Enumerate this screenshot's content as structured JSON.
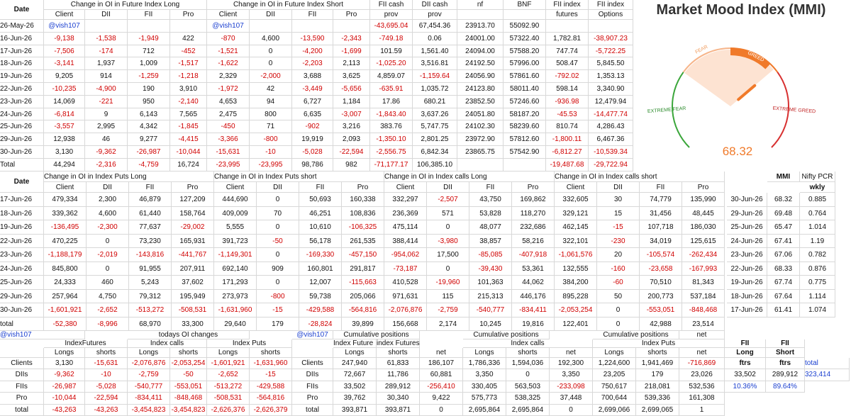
{
  "top": {
    "header": [
      "Date",
      "Change in OI in Future Index Long",
      "Change in OI in Future Index Short",
      "FII cash",
      "DII cash",
      "nf",
      "BNF",
      "FII index",
      "FII index"
    ],
    "subheader": [
      "Client",
      "DII",
      "FII",
      "Pro",
      "Client",
      "DII",
      "FII",
      "Pro",
      "prov",
      "prov",
      null,
      null,
      "futures",
      "Options"
    ],
    "rows": [
      [
        "26-May-26",
        "@vish107",
        null,
        null,
        null,
        "@vish107",
        null,
        null,
        null,
        "-43,695.04",
        "67,454.36",
        "23913.70",
        "55092.90",
        null,
        null
      ],
      [
        "16-Jun-26",
        "-9,138",
        "-1,538",
        "-1,949",
        "422",
        "-870",
        "4,600",
        "-13,590",
        "-2,343",
        "-749.18",
        "0.06",
        "24001.00",
        "57322.40",
        "1,782.81",
        "-38,907.23"
      ],
      [
        "17-Jun-26",
        "-7,506",
        "-174",
        "712",
        "-452",
        "-1,521",
        "0",
        "-4,200",
        "-1,699",
        "101.59",
        "1,561.40",
        "24094.00",
        "57588.20",
        "747.74",
        "-5,722.25"
      ],
      [
        "18-Jun-26",
        "-3,141",
        "1,937",
        "1,009",
        "-1,517",
        "-1,622",
        "0",
        "-2,203",
        "2,113",
        "-1,025.20",
        "3,516.81",
        "24192.50",
        "57996.00",
        "508.47",
        "5,845.50"
      ],
      [
        "19-Jun-26",
        "9,205",
        "914",
        "-1,259",
        "-1,218",
        "2,329",
        "-2,000",
        "3,688",
        "3,625",
        "4,859.07",
        "-1,159.64",
        "24056.90",
        "57861.60",
        "-792.02",
        "1,353.13"
      ],
      [
        "22-Jun-26",
        "-10,235",
        "-4,900",
        "190",
        "3,910",
        "-1,972",
        "42",
        "-3,449",
        "-5,656",
        "-635.91",
        "1,035.72",
        "24123.80",
        "58011.40",
        "598.14",
        "3,340.90"
      ],
      [
        "23-Jun-26",
        "14,069",
        "-221",
        "950",
        "-2,140",
        "4,653",
        "94",
        "6,727",
        "1,184",
        "17.86",
        "680.21",
        "23852.50",
        "57246.60",
        "-936.98",
        "12,479.94"
      ],
      [
        "24-Jun-26",
        "-6,814",
        "9",
        "6,143",
        "7,565",
        "2,475",
        "800",
        "6,635",
        "-3,007",
        "-1,843.40",
        "3,637.26",
        "24051.80",
        "58187.20",
        "-45.53",
        "-14,477.74"
      ],
      [
        "25-Jun-26",
        "-3,557",
        "2,995",
        "4,342",
        "-1,845",
        "-450",
        "71",
        "-902",
        "3,216",
        "383.76",
        "5,747.75",
        "24102.30",
        "58239.60",
        "810.74",
        "4,286.43"
      ],
      [
        "29-Jun-26",
        "12,938",
        "46",
        "9,277",
        "-4,415",
        "-3,366",
        "-800",
        "19,919",
        "2,093",
        "-1,350.10",
        "2,801.25",
        "23972.90",
        "57812.60",
        "-1,800.11",
        "6,467.36"
      ],
      [
        "30-Jun-26",
        "3,130",
        "-9,362",
        "-26,987",
        "-10,044",
        "-15,631",
        "-10",
        "-5,028",
        "-22,594",
        "-2,556.75",
        "6,842.34",
        "23865.75",
        "57542.90",
        "-6,812.27",
        "-10,539.34"
      ],
      [
        "Total",
        "44,294",
        "-2,316",
        "-4,759",
        "16,724",
        "-23,995",
        "-23,995",
        "98,786",
        "982",
        "-71,177.17",
        "106,385.10",
        null,
        null,
        "-19,487.68",
        "-29,722.94"
      ]
    ]
  },
  "mmi": {
    "title": "Market Mood Index (MMI)",
    "extreme_fear": "EXTREME FEAR",
    "fear": "FEAR",
    "greed": "GREED",
    "extreme_greed": "EXTREME GREED",
    "value": 68.32,
    "range": [
      0,
      100
    ]
  },
  "middle": {
    "header": [
      "Date",
      "Change in OI in Index Puts Long",
      "Change in OI in Index Puts short",
      "Change in OI in Index calls Long",
      "Change in OI in Index calls short"
    ],
    "subheader": [
      "Client",
      "DII",
      "FII",
      "Pro",
      "Client",
      "DII",
      "FII",
      "Pro",
      "Client",
      "DII",
      "FII",
      "Pro",
      "Client",
      "DII",
      "FII",
      "Pro"
    ],
    "rows": [
      [
        "17-Jun-26",
        "479,334",
        "2,300",
        "46,879",
        "127,209",
        "444,690",
        "0",
        "50,693",
        "160,338",
        "332,297",
        "-2,507",
        "43,750",
        "169,862",
        "332,605",
        "30",
        "74,779",
        "135,990"
      ],
      [
        "18-Jun-26",
        "339,362",
        "4,600",
        "61,440",
        "158,764",
        "409,009",
        "70",
        "46,251",
        "108,836",
        "236,369",
        "571",
        "53,828",
        "118,270",
        "329,121",
        "15",
        "31,456",
        "48,445"
      ],
      [
        "19-Jun-26",
        "-136,495",
        "-2,300",
        "77,637",
        "-29,002",
        "5,555",
        "0",
        "10,610",
        "-106,325",
        "475,114",
        "0",
        "48,077",
        "232,686",
        "462,145",
        "-15",
        "107,718",
        "186,030"
      ],
      [
        "22-Jun-26",
        "470,225",
        "0",
        "73,230",
        "165,931",
        "391,723",
        "-50",
        "56,178",
        "261,535",
        "388,414",
        "-3,980",
        "38,857",
        "58,216",
        "322,101",
        "-230",
        "34,019",
        "125,615"
      ],
      [
        "23-Jun-26",
        "-1,188,179",
        "-2,019",
        "-143,816",
        "-441,767",
        "-1,149,301",
        "0",
        "-169,330",
        "-457,150",
        "-954,062",
        "17,500",
        "-85,085",
        "-407,918",
        "-1,061,576",
        "20",
        "-105,574",
        "-262,434"
      ],
      [
        "24-Jun-26",
        "845,800",
        "0",
        "91,955",
        "207,911",
        "692,140",
        "909",
        "160,801",
        "291,817",
        "-73,187",
        "0",
        "-39,430",
        "53,361",
        "132,555",
        "-160",
        "-23,658",
        "-167,993"
      ],
      [
        "25-Jun-26",
        "24,333",
        "460",
        "5,243",
        "37,602",
        "171,293",
        "0",
        "12,007",
        "-115,663",
        "410,528",
        "-19,960",
        "101,363",
        "44,062",
        "384,200",
        "-60",
        "70,510",
        "81,343"
      ],
      [
        "29-Jun-26",
        "257,964",
        "4,750",
        "79,312",
        "195,949",
        "273,973",
        "-800",
        "59,738",
        "205,066",
        "971,631",
        "115",
        "215,313",
        "446,176",
        "895,228",
        "50",
        "200,773",
        "537,184"
      ],
      [
        "30-Jun-26",
        "-1,601,921",
        "-2,652",
        "-513,272",
        "-508,531",
        "-1,631,960",
        "-15",
        "-429,588",
        "-564,816",
        "-2,076,876",
        "-2,759",
        "-540,777",
        "-834,411",
        "-2,053,254",
        "0",
        "-553,051",
        "-848,468"
      ],
      [
        "total",
        "-52,380",
        "-8,996",
        "68,970",
        "33,300",
        "29,640",
        "179",
        "-28,824",
        "39,899",
        "156,668",
        "2,174",
        "10,245",
        "19,816",
        "122,401",
        "0",
        "42,988",
        "23,514"
      ]
    ]
  },
  "mmi_table": {
    "header": [
      "MMI",
      "Nifty PCR"
    ],
    "subheader": "wkly",
    "rows": [
      [
        "30-Jun-26",
        "68.32",
        "0.885"
      ],
      [
        "29-Jun-26",
        "69.48",
        "0.764"
      ],
      [
        "25-Jun-26",
        "65.47",
        "1.014"
      ],
      [
        "24-Jun-26",
        "67.41",
        "1.19"
      ],
      [
        "23-Jun-26",
        "67.06",
        "0.782"
      ],
      [
        "22-Jun-26",
        "68.33",
        "0.876"
      ],
      [
        "19-Jun-26",
        "67.74",
        "0.775"
      ],
      [
        "18-Jun-26",
        "67.64",
        "1.114"
      ],
      [
        "17-Jun-26",
        "61.41",
        "1.074"
      ]
    ]
  },
  "bottom": {
    "banner": [
      "@vish107",
      "todays OI changes",
      "@vish107",
      "Cumulative positions",
      "Cumulative positions",
      "Cumulative positions",
      "net"
    ],
    "groups": [
      "IndexFutures",
      "Index calls",
      "Index Puts",
      "Index Future",
      "index Futures",
      "Index calls",
      "Index Puts"
    ],
    "subheader": [
      null,
      "Longs",
      "shorts",
      "Longs",
      "shorts",
      "Longs",
      "shorts",
      null,
      "Longs",
      "shorts",
      "net",
      "Longs",
      "shorts",
      "net",
      "Longs",
      "shorts",
      "net"
    ],
    "rows": [
      [
        "Clients",
        "3,130",
        "-15,631",
        "-2,076,876",
        "-2,053,254",
        "-1,601,921",
        "-1,631,960",
        "Clients",
        "247,940",
        "61,833",
        "186,107",
        "1,786,336",
        "1,594,036",
        "192,300",
        "1,224,600",
        "1,941,469",
        "-716,869"
      ],
      [
        "DIIs",
        "-9,362",
        "-10",
        "-2,759",
        "-50",
        "-2,652",
        "-15",
        "DIIs",
        "72,667",
        "11,786",
        "60,881",
        "3,350",
        "0",
        "3,350",
        "23,205",
        "179",
        "23,026"
      ],
      [
        "FIIs",
        "-26,987",
        "-5,028",
        "-540,777",
        "-553,051",
        "-513,272",
        "-429,588",
        "FIIs",
        "33,502",
        "289,912",
        "-256,410",
        "330,405",
        "563,503",
        "-233,098",
        "750,617",
        "218,081",
        "532,536"
      ],
      [
        "Pro",
        "-10,044",
        "-22,594",
        "-834,411",
        "-848,468",
        "-508,531",
        "-564,816",
        "Pro",
        "39,762",
        "30,340",
        "9,422",
        "575,773",
        "538,325",
        "37,448",
        "700,644",
        "539,336",
        "161,308"
      ],
      [
        "total",
        "-43,263",
        "-43,263",
        "-3,454,823",
        "-3,454,823",
        "-2,626,376",
        "-2,626,379",
        "total",
        "393,871",
        "393,871",
        "0",
        "2,695,864",
        "2,695,864",
        "0",
        "2,699,066",
        "2,699,065",
        "1"
      ]
    ]
  },
  "fii_split": {
    "long_header": [
      "FII",
      "Long",
      "ftrs"
    ],
    "short_header": [
      "FII",
      "Short",
      "ftrs"
    ],
    "total_label": "total",
    "values": [
      "33,502",
      "289,912"
    ],
    "total": "323,414",
    "percents": [
      "10.36%",
      "89.64%"
    ]
  }
}
